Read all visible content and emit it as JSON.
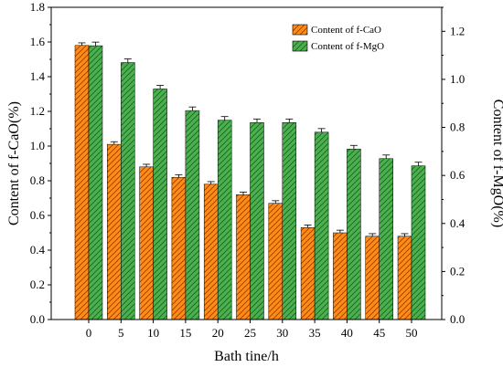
{
  "chart_data": {
    "type": "bar",
    "xlabel": "Bath tine/h",
    "ylabel_left": "Content of f-CaO(%)",
    "ylabel_right": "Content of f-MgO(%)",
    "categories": [
      "0",
      "5",
      "10",
      "15",
      "20",
      "25",
      "30",
      "35",
      "40",
      "45",
      "50"
    ],
    "ylim_left": [
      0,
      1.8
    ],
    "ylim_right": [
      0,
      1.3
    ],
    "yticks_left": [
      "0.0",
      "0.2",
      "0.4",
      "0.6",
      "0.8",
      "1.0",
      "1.2",
      "1.4",
      "1.6",
      "1.8"
    ],
    "yticks_right": [
      "0.0",
      "0.2",
      "0.4",
      "0.6",
      "0.8",
      "1.0",
      "1.2"
    ],
    "legend_position": "top-right",
    "grid": false,
    "series": [
      {
        "name": "Content of f-CaO",
        "axis": "left",
        "color": "#FF8C1A",
        "hatch": "diagonal",
        "values": [
          1.58,
          1.01,
          0.88,
          0.82,
          0.78,
          0.72,
          0.67,
          0.53,
          0.5,
          0.48,
          0.48
        ],
        "errors": [
          0.015,
          0.015,
          0.015,
          0.015,
          0.015,
          0.015,
          0.015,
          0.015,
          0.015,
          0.015,
          0.015
        ]
      },
      {
        "name": "Content of f-MgO",
        "axis": "right",
        "color": "#4CAF50",
        "hatch": "diagonal",
        "values": [
          1.14,
          1.07,
          0.96,
          0.87,
          0.83,
          0.82,
          0.82,
          0.78,
          0.71,
          0.67,
          0.64
        ],
        "errors": [
          0.015,
          0.015,
          0.015,
          0.015,
          0.015,
          0.015,
          0.015,
          0.015,
          0.015,
          0.015,
          0.015
        ]
      }
    ]
  }
}
